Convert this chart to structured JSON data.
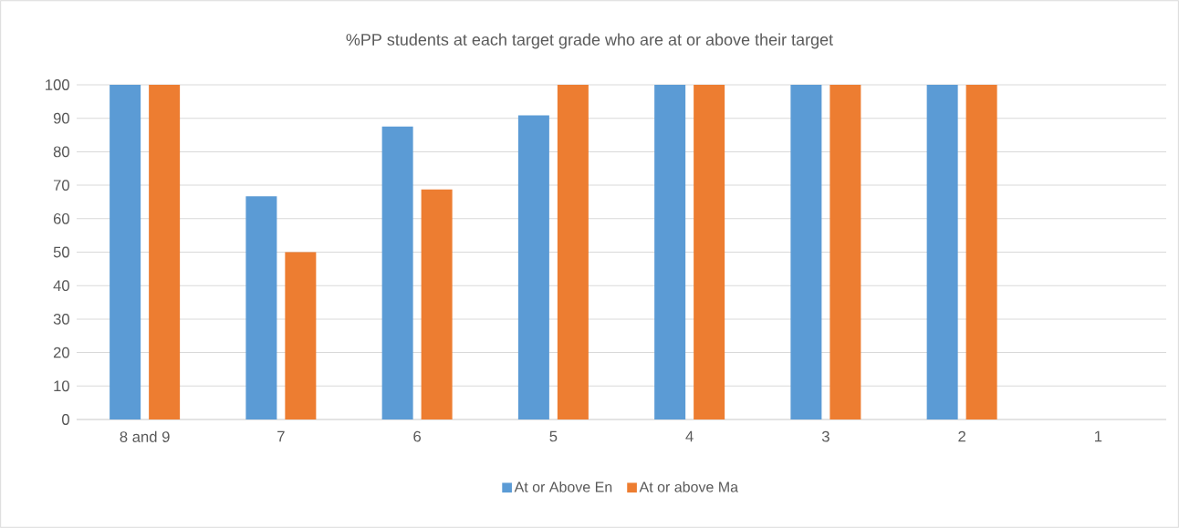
{
  "chart_data": {
    "type": "bar",
    "title": "%PP students at each target grade who are at or above their target",
    "categories": [
      "8 and 9",
      "7",
      "6",
      "5",
      "4",
      "3",
      "2",
      "1"
    ],
    "series": [
      {
        "name": "At or Above En",
        "color": "#5b9bd5",
        "values": [
          100,
          66.7,
          87.5,
          90.9,
          100,
          100,
          100,
          null
        ]
      },
      {
        "name": "At or above Ma",
        "color": "#ed7d31",
        "values": [
          100,
          50,
          68.7,
          100,
          100,
          100,
          100,
          null
        ]
      }
    ],
    "ylim": [
      0,
      100
    ],
    "yticks": [
      0,
      10,
      20,
      30,
      40,
      50,
      60,
      70,
      80,
      90,
      100
    ],
    "grid": "y",
    "legend": "bottom"
  }
}
